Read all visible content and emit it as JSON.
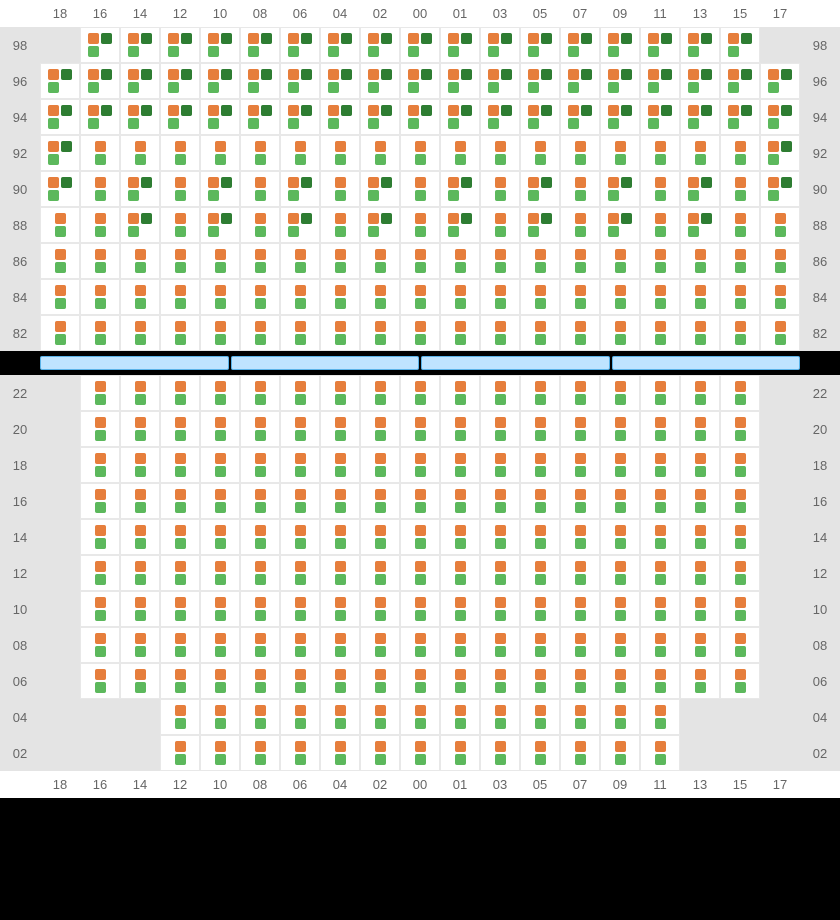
{
  "type": "seating-grid",
  "colors": {
    "orange": "#e67e3c",
    "green": "#5cb85c",
    "darkgreen": "#2e7d32",
    "empty_bg": "#e4e4e4",
    "cell_bg": "#ffffff",
    "grid_line": "#e8e8e8",
    "label_text": "#666666",
    "divider_bg": "#bfe4ff",
    "divider_border": "#5bb3e8",
    "frame": "#000000"
  },
  "column_labels": [
    "18",
    "16",
    "14",
    "12",
    "10",
    "08",
    "06",
    "04",
    "02",
    "00",
    "01",
    "03",
    "05",
    "07",
    "09",
    "11",
    "13",
    "15",
    "17"
  ],
  "top_section": {
    "row_labels": [
      "98",
      "96",
      "94",
      "92",
      "90",
      "88",
      "86",
      "84",
      "82"
    ],
    "rows": [
      {
        "lbl": "98",
        "empty_cols": [
          "18",
          "17"
        ],
        "variant": "A",
        "a_cols": [
          "16",
          "14",
          "12",
          "10",
          "08",
          "06",
          "04",
          "02",
          "00",
          "01",
          "03",
          "05",
          "07",
          "09",
          "11",
          "13",
          "15"
        ]
      },
      {
        "lbl": "96",
        "empty_cols": [],
        "variant": "A",
        "a_cols": [
          "18",
          "16",
          "14",
          "12",
          "10",
          "08",
          "06",
          "04",
          "02",
          "00",
          "01",
          "03",
          "05",
          "07",
          "09",
          "11",
          "13",
          "15",
          "17"
        ]
      },
      {
        "lbl": "94",
        "empty_cols": [],
        "variant": "A",
        "a_cols": [
          "18",
          "16",
          "14",
          "12",
          "10",
          "08",
          "06",
          "04",
          "02",
          "00",
          "01",
          "03",
          "05",
          "07",
          "09",
          "11",
          "13",
          "15",
          "17"
        ]
      },
      {
        "lbl": "92",
        "empty_cols": [],
        "variant": "mix",
        "a_cols": [
          "18",
          "17"
        ],
        "b_cols": [
          "16",
          "14",
          "12",
          "10",
          "08",
          "06",
          "04",
          "02",
          "00",
          "01",
          "03",
          "05",
          "07",
          "09",
          "11",
          "13",
          "15"
        ]
      },
      {
        "lbl": "90",
        "empty_cols": [],
        "variant": "mix",
        "a_cols": [
          "18",
          "14",
          "10",
          "06",
          "02",
          "01",
          "05",
          "09",
          "13",
          "17"
        ],
        "b_cols": [
          "16",
          "12",
          "08",
          "04",
          "00",
          "03",
          "07",
          "11",
          "15"
        ]
      },
      {
        "lbl": "88",
        "empty_cols": [],
        "variant": "mix",
        "a_cols": [
          "14",
          "10",
          "06",
          "02",
          "01",
          "05",
          "09",
          "13"
        ],
        "b_cols": [
          "18",
          "16",
          "12",
          "08",
          "04",
          "00",
          "03",
          "07",
          "11",
          "15",
          "17"
        ]
      },
      {
        "lbl": "86",
        "empty_cols": [],
        "variant": "B",
        "b_cols": [
          "18",
          "16",
          "14",
          "12",
          "10",
          "08",
          "06",
          "04",
          "02",
          "00",
          "01",
          "03",
          "05",
          "07",
          "09",
          "11",
          "13",
          "15",
          "17"
        ]
      },
      {
        "lbl": "84",
        "empty_cols": [],
        "variant": "B",
        "b_cols": [
          "18",
          "16",
          "14",
          "12",
          "10",
          "08",
          "06",
          "04",
          "02",
          "00",
          "01",
          "03",
          "05",
          "07",
          "09",
          "11",
          "13",
          "15",
          "17"
        ]
      },
      {
        "lbl": "82",
        "empty_cols": [],
        "variant": "B",
        "b_cols": [
          "18",
          "16",
          "14",
          "12",
          "10",
          "08",
          "06",
          "04",
          "02",
          "00",
          "01",
          "03",
          "05",
          "07",
          "09",
          "11",
          "13",
          "15",
          "17"
        ]
      }
    ]
  },
  "divider_segments": 4,
  "bottom_section": {
    "row_labels": [
      "22",
      "20",
      "18",
      "16",
      "14",
      "12",
      "10",
      "08",
      "06",
      "04",
      "02"
    ],
    "rows": [
      {
        "lbl": "22",
        "empty_cols": [
          "18",
          "17"
        ],
        "variant": "B"
      },
      {
        "lbl": "20",
        "empty_cols": [
          "18",
          "17"
        ],
        "variant": "B"
      },
      {
        "lbl": "18",
        "empty_cols": [
          "18",
          "17"
        ],
        "variant": "B"
      },
      {
        "lbl": "16",
        "empty_cols": [
          "18",
          "17"
        ],
        "variant": "B"
      },
      {
        "lbl": "14",
        "empty_cols": [
          "18",
          "17"
        ],
        "variant": "B"
      },
      {
        "lbl": "12",
        "empty_cols": [
          "18",
          "17"
        ],
        "variant": "B"
      },
      {
        "lbl": "10",
        "empty_cols": [
          "18",
          "17"
        ],
        "variant": "B"
      },
      {
        "lbl": "08",
        "empty_cols": [
          "18",
          "17"
        ],
        "variant": "B"
      },
      {
        "lbl": "06",
        "empty_cols": [
          "18",
          "17"
        ],
        "variant": "B"
      },
      {
        "lbl": "04",
        "empty_cols": [
          "18",
          "16",
          "14",
          "13",
          "15",
          "17"
        ],
        "variant": "B"
      },
      {
        "lbl": "02",
        "empty_cols": [
          "18",
          "16",
          "14",
          "13",
          "15",
          "17"
        ],
        "variant": "B"
      }
    ]
  }
}
